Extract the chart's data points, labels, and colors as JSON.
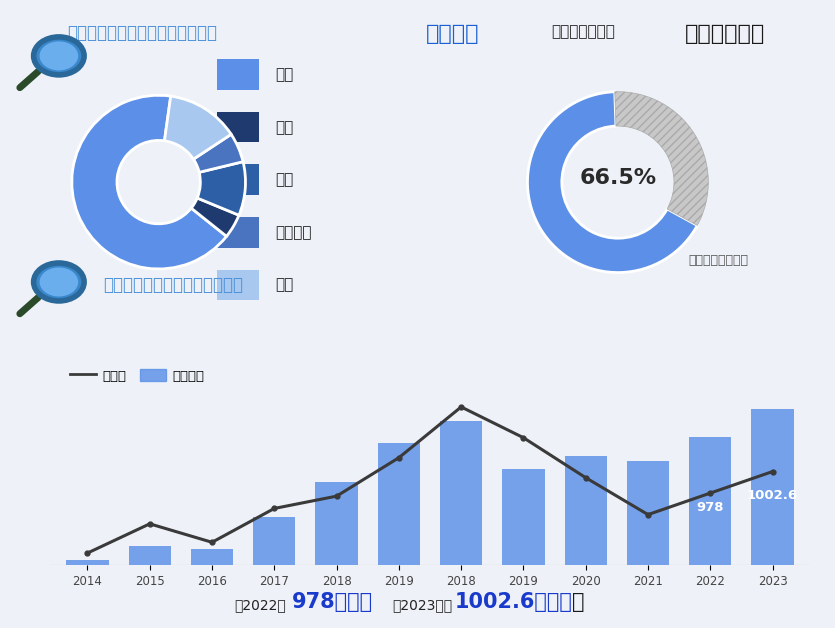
{
  "bg_color": "#eef2f8",
  "top_title1": "全球工业阀门覆盖范围及份额占比",
  "top_title2_part1": "亚太地区",
  "top_title2_part2": "是工业阀门市场",
  "top_title2_part3": "最大的地区。",
  "donut1_values": [
    66.5,
    4.5,
    10.0,
    5.5,
    13.5
  ],
  "donut1_labels": [
    "亚太",
    "欧洲",
    "北美",
    "拉丁美洲",
    "其他"
  ],
  "donut1_colors": [
    "#5b8fe8",
    "#1e3a6e",
    "#2d5fa6",
    "#4a74c0",
    "#a8c8f0"
  ],
  "donut2_value": 66.5,
  "donut2_label": "66.5%",
  "donut2_sublabel": "亚太市场份额占比",
  "donut2_color_fill": "#5b8fe8",
  "donut2_color_empty": "#c8c8c8",
  "bar_title": "全球工业阀门市场规模浮动情况",
  "bar_years": [
    "2014",
    "2015",
    "2016",
    "2017",
    "2018",
    "2019",
    "2018",
    "2019",
    "2020",
    "2021",
    "2022",
    "2023"
  ],
  "bar_values": [
    3,
    12,
    10,
    30,
    52,
    76,
    90,
    60,
    68,
    65,
    80,
    97
  ],
  "bar_color": "#5b8fe8",
  "bar_alpha": 0.82,
  "line_values": [
    3,
    22,
    10,
    32,
    40,
    65,
    98,
    78,
    52,
    28,
    42,
    56
  ],
  "line_color": "#3a3a3a",
  "bar_label_978": "978",
  "bar_label_1002": "1002.6",
  "legend_line": "增长率",
  "legend_bar": "市场规模",
  "bottom_text_part1": "从2022年",
  "bottom_text_978": "978亿美元",
  "bottom_text_part2": "到2023年的",
  "bottom_text_1002": "1002.6亿美元",
  "bottom_text_end": "。"
}
